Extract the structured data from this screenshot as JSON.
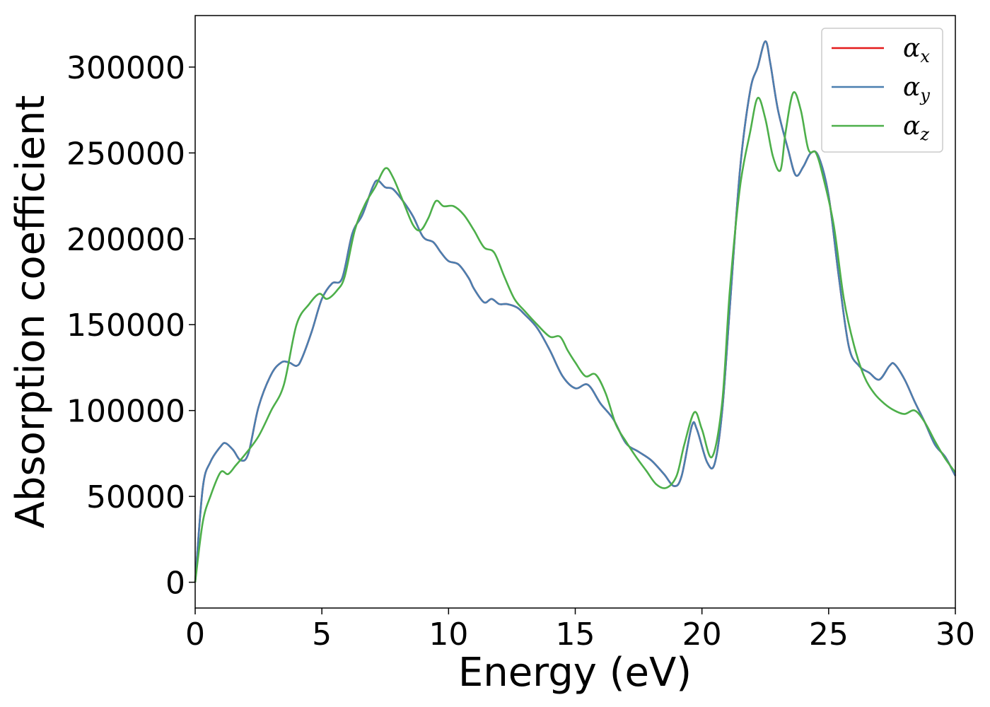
{
  "chart_data": {
    "type": "line",
    "title": "",
    "xlabel": "Energy (eV)",
    "ylabel": "Absorption coefficient",
    "xlim": [
      0,
      30
    ],
    "ylim": [
      -15000,
      330000
    ],
    "xticks": [
      0,
      5,
      10,
      15,
      20,
      25,
      30
    ],
    "yticks": [
      0,
      50000,
      100000,
      150000,
      200000,
      250000,
      300000
    ],
    "xtick_labels": [
      "0",
      "5",
      "10",
      "15",
      "20",
      "25",
      "30"
    ],
    "ytick_labels": [
      "0",
      "50000",
      "100000",
      "150000",
      "200000",
      "250000",
      "300000"
    ],
    "grid": false,
    "legend_position": "top-right",
    "series": [
      {
        "name": "α_x",
        "label_base": "α",
        "label_sub": "x",
        "color": "#e41a1c",
        "x": [
          0,
          0.3,
          0.6,
          1.0,
          1.2,
          1.5,
          1.8,
          2.1,
          2.5,
          3.0,
          3.4,
          3.7,
          4.0,
          4.2,
          4.6,
          5.0,
          5.4,
          5.8,
          6.2,
          6.6,
          7.0,
          7.2,
          7.5,
          7.8,
          8.2,
          8.6,
          9.0,
          9.4,
          9.7,
          10.0,
          10.4,
          10.8,
          11.0,
          11.4,
          11.7,
          12.0,
          12.3,
          12.7,
          13.0,
          13.5,
          14.0,
          14.5,
          15.0,
          15.5,
          16.0,
          16.5,
          17.0,
          17.5,
          18.0,
          18.5,
          18.9,
          19.2,
          19.6,
          19.8,
          20.2,
          20.5,
          20.8,
          21.1,
          21.5,
          21.9,
          22.2,
          22.5,
          22.7,
          23.0,
          23.4,
          23.7,
          24.0,
          24.3,
          24.6,
          25.0,
          25.4,
          25.8,
          26.2,
          26.6,
          27.0,
          27.4,
          27.6,
          28.0,
          28.4,
          28.8,
          29.2,
          29.6,
          30.0
        ],
        "y": [
          0,
          55000,
          70000,
          79000,
          81000,
          77000,
          71000,
          75000,
          102000,
          121000,
          128000,
          128000,
          126000,
          130000,
          146000,
          165000,
          174000,
          177000,
          203000,
          214000,
          230000,
          234000,
          230000,
          229000,
          222000,
          213000,
          201000,
          198000,
          192000,
          187000,
          185000,
          177000,
          171000,
          163000,
          165000,
          162000,
          162000,
          160000,
          156000,
          148000,
          135000,
          120000,
          113000,
          115000,
          104000,
          95000,
          81000,
          76000,
          71000,
          63000,
          56000,
          62000,
          91000,
          89000,
          70000,
          69000,
          100000,
          160000,
          240000,
          286000,
          300000,
          315000,
          302000,
          275000,
          252000,
          237000,
          242000,
          250000,
          248000,
          225000,
          178000,
          137000,
          126000,
          122000,
          118000,
          126000,
          127000,
          118000,
          105000,
          93000,
          80000,
          73000,
          62000
        ]
      },
      {
        "name": "α_y",
        "label_base": "α",
        "label_sub": "y",
        "color": "#4a7fb0",
        "x": [
          0,
          0.3,
          0.6,
          1.0,
          1.2,
          1.5,
          1.8,
          2.1,
          2.5,
          3.0,
          3.4,
          3.7,
          4.0,
          4.2,
          4.6,
          5.0,
          5.4,
          5.8,
          6.2,
          6.6,
          7.0,
          7.2,
          7.5,
          7.8,
          8.2,
          8.6,
          9.0,
          9.4,
          9.7,
          10.0,
          10.4,
          10.8,
          11.0,
          11.4,
          11.7,
          12.0,
          12.3,
          12.7,
          13.0,
          13.5,
          14.0,
          14.5,
          15.0,
          15.5,
          16.0,
          16.5,
          17.0,
          17.5,
          18.0,
          18.5,
          18.9,
          19.2,
          19.6,
          19.8,
          20.2,
          20.5,
          20.8,
          21.1,
          21.5,
          21.9,
          22.2,
          22.5,
          22.7,
          23.0,
          23.4,
          23.7,
          24.0,
          24.3,
          24.6,
          25.0,
          25.4,
          25.8,
          26.2,
          26.6,
          27.0,
          27.4,
          27.6,
          28.0,
          28.4,
          28.8,
          29.2,
          29.6,
          30.0
        ],
        "y": [
          0,
          55000,
          70000,
          79000,
          81000,
          77000,
          71000,
          75000,
          102000,
          121000,
          128000,
          128000,
          126000,
          130000,
          146000,
          165000,
          174000,
          177000,
          203000,
          214000,
          230000,
          234000,
          230000,
          229000,
          222000,
          213000,
          201000,
          198000,
          192000,
          187000,
          185000,
          177000,
          171000,
          163000,
          165000,
          162000,
          162000,
          160000,
          156000,
          148000,
          135000,
          120000,
          113000,
          115000,
          104000,
          95000,
          81000,
          76000,
          71000,
          63000,
          56000,
          62000,
          91000,
          89000,
          70000,
          69000,
          100000,
          160000,
          240000,
          286000,
          300000,
          315000,
          302000,
          275000,
          252000,
          237000,
          242000,
          250000,
          248000,
          225000,
          178000,
          137000,
          126000,
          122000,
          118000,
          126000,
          127000,
          118000,
          105000,
          93000,
          80000,
          73000,
          62000
        ]
      },
      {
        "name": "α_z",
        "label_base": "α",
        "label_sub": "z",
        "color": "#4daf4a",
        "x": [
          0,
          0.3,
          0.6,
          1.0,
          1.3,
          1.6,
          2.0,
          2.5,
          3.0,
          3.5,
          4.0,
          4.5,
          4.9,
          5.2,
          5.6,
          5.9,
          6.3,
          6.7,
          7.1,
          7.5,
          7.8,
          8.2,
          8.6,
          8.9,
          9.2,
          9.5,
          9.8,
          10.2,
          10.6,
          11.0,
          11.4,
          11.8,
          12.2,
          12.6,
          13.0,
          13.5,
          14.0,
          14.4,
          14.7,
          15.0,
          15.4,
          15.8,
          16.2,
          16.6,
          17.0,
          17.4,
          17.8,
          18.2,
          18.6,
          19.0,
          19.3,
          19.7,
          20.0,
          20.4,
          20.8,
          21.1,
          21.5,
          21.9,
          22.2,
          22.5,
          22.8,
          23.1,
          23.3,
          23.6,
          23.9,
          24.2,
          24.5,
          24.8,
          25.2,
          25.6,
          26.0,
          26.4,
          26.8,
          27.2,
          27.6,
          28.0,
          28.4,
          28.8,
          29.2,
          29.6,
          30.0
        ],
        "y": [
          0,
          35000,
          50000,
          64000,
          63000,
          68000,
          75000,
          85000,
          100000,
          115000,
          150000,
          162000,
          168000,
          165000,
          170000,
          178000,
          205000,
          220000,
          230000,
          241000,
          236000,
          222000,
          208000,
          205000,
          212000,
          222000,
          219000,
          219000,
          214000,
          205000,
          195000,
          192000,
          178000,
          165000,
          158000,
          150000,
          143000,
          143000,
          135000,
          128000,
          120000,
          121000,
          110000,
          92000,
          82000,
          73000,
          65000,
          57000,
          55000,
          62000,
          80000,
          99000,
          89000,
          73000,
          105000,
          170000,
          230000,
          262000,
          282000,
          270000,
          248000,
          240000,
          262000,
          285000,
          275000,
          252000,
          250000,
          235000,
          208000,
          165000,
          138000,
          120000,
          110000,
          104000,
          100000,
          98000,
          100000,
          93000,
          82000,
          72000,
          64000
        ]
      }
    ]
  }
}
